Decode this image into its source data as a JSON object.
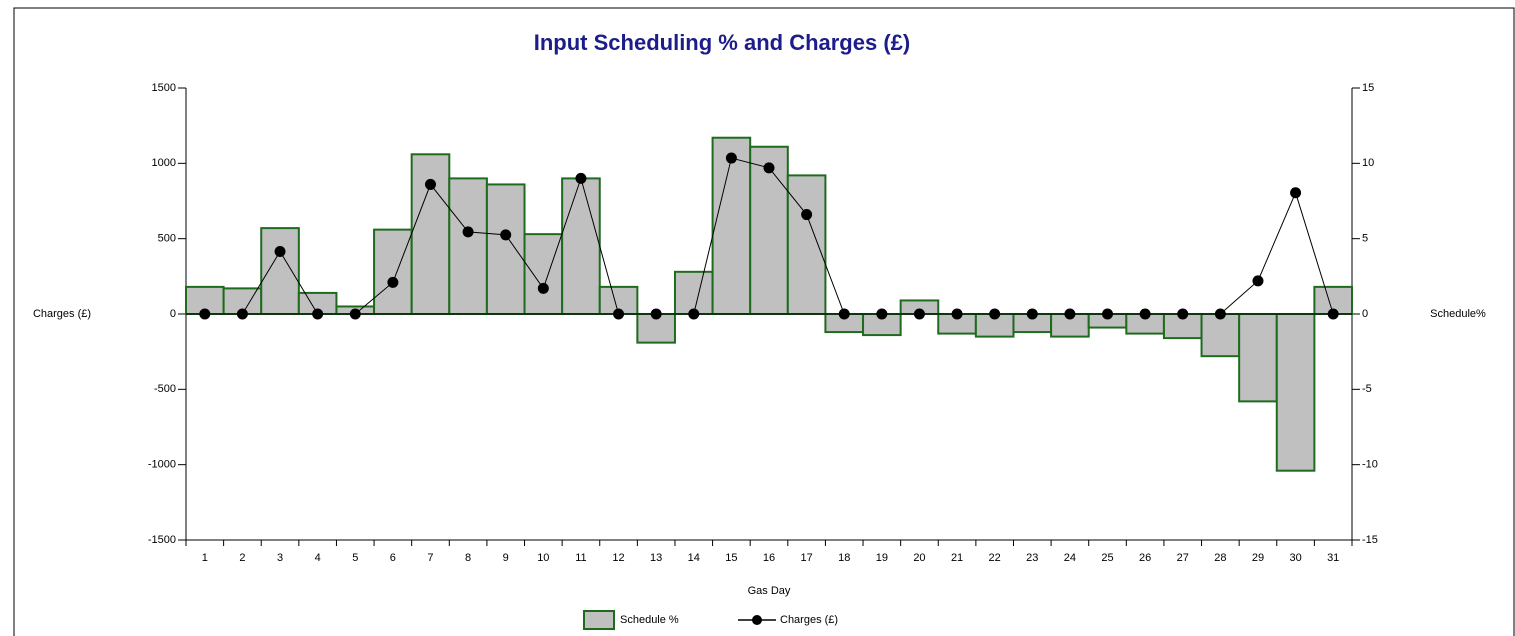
{
  "chart_data": {
    "type": "bar-line",
    "title": "Input Scheduling % and Charges (£)",
    "x_label": "Gas Day",
    "y_label": "Charges (£)",
    "y2_label": "Schedule%",
    "categories": [
      "1",
      "2",
      "3",
      "4",
      "5",
      "6",
      "7",
      "8",
      "9",
      "10",
      "11",
      "12",
      "13",
      "14",
      "15",
      "16",
      "17",
      "18",
      "19",
      "20",
      "21",
      "22",
      "23",
      "24",
      "25",
      "26",
      "27",
      "28",
      "29",
      "30",
      "31"
    ],
    "series": [
      {
        "name": "Schedule %",
        "type": "bar",
        "axis": "y2",
        "color": "#c0c0c0",
        "edge_color": "#1e6b1e",
        "values": [
          1.8,
          1.7,
          5.7,
          1.4,
          0.5,
          5.6,
          10.6,
          9.0,
          8.6,
          5.3,
          9.0,
          1.8,
          -1.9,
          2.8,
          11.7,
          11.1,
          9.2,
          -1.2,
          -1.4,
          0.9,
          -1.3,
          -1.5,
          -1.2,
          -1.5,
          -0.9,
          -1.3,
          -1.6,
          -2.8,
          -5.8,
          -10.4,
          1.8
        ]
      },
      {
        "name": "Charges (£)",
        "type": "line",
        "axis": "y",
        "color": "#000000",
        "values": [
          0,
          0,
          415,
          0,
          0,
          210,
          860,
          545,
          525,
          170,
          900,
          0,
          0,
          0,
          1035,
          970,
          660,
          0,
          0,
          0,
          0,
          0,
          0,
          0,
          0,
          0,
          0,
          0,
          220,
          805,
          0
        ]
      }
    ],
    "ylim": [
      -1500,
      1500
    ],
    "yticks": [
      -1500,
      -1000,
      -500,
      0,
      500,
      1000,
      1500
    ],
    "y2lim": [
      -15,
      15
    ],
    "y2ticks": [
      -15,
      -10,
      -5,
      0,
      5,
      10,
      15
    ],
    "legend": "bottom"
  }
}
